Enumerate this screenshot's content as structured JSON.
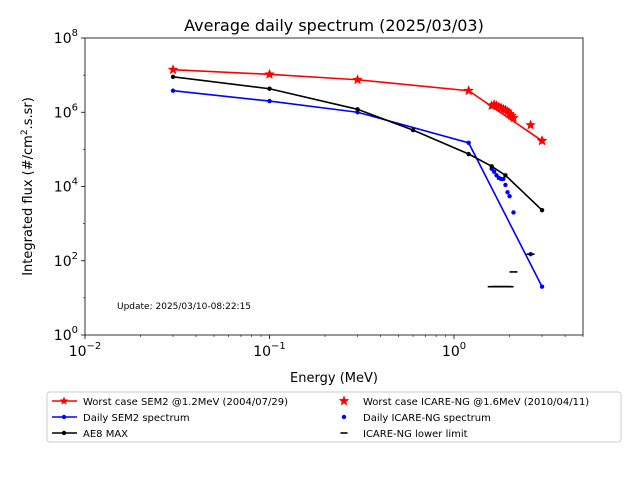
{
  "chart_data": {
    "type": "line",
    "title": "Average daily spectrum (2025/03/03)",
    "xlabel": "Energy (MeV)",
    "ylabel": "Integrated flux (#/cm².s.sr)",
    "xscale": "log",
    "yscale": "log",
    "xlim": [
      0.01,
      5
    ],
    "ylim": [
      1,
      100000000
    ],
    "grid": false,
    "legend_position": "below plot",
    "annotation": "Update: 2025/03/10-08:22:15",
    "x_ticks": [
      {
        "v": 0.01,
        "base": "10",
        "exp": "−2"
      },
      {
        "v": 0.1,
        "base": "10",
        "exp": "−1"
      },
      {
        "v": 1,
        "base": "10",
        "exp": "0"
      }
    ],
    "y_ticks": [
      {
        "v": 1,
        "base": "10",
        "exp": "0"
      },
      {
        "v": 100,
        "base": "10",
        "exp": "2"
      },
      {
        "v": 10000,
        "base": "10",
        "exp": "4"
      },
      {
        "v": 1000000,
        "base": "10",
        "exp": "6"
      },
      {
        "v": 100000000,
        "base": "10",
        "exp": "8"
      }
    ],
    "series": [
      {
        "name": "Worst case SEM2 @1.2MeV (2004/07/29)",
        "color": "#ff0000",
        "style": "line",
        "marker": "star",
        "x": [
          0.03,
          0.1,
          0.3,
          1.2,
          3.0
        ],
        "y": [
          14000000,
          10500000,
          7500000,
          3800000,
          170000
        ]
      },
      {
        "name": "Worst case ICARE-NG @1.6MeV (2010/04/11)",
        "color": "#ff0000",
        "style": "scatter",
        "marker": "star",
        "x": [
          1.6,
          1.65,
          1.7,
          1.75,
          1.8,
          1.85,
          1.9,
          1.95,
          2.0,
          2.05,
          2.1,
          2.6,
          3.0
        ],
        "y": [
          1500000,
          1600000,
          1500000,
          1400000,
          1300000,
          1200000,
          1150000,
          1050000,
          900000,
          800000,
          700000,
          450000,
          170000
        ]
      },
      {
        "name": "Daily SEM2 spectrum",
        "color": "#0000ff",
        "style": "line",
        "marker": "dot",
        "x": [
          0.03,
          0.1,
          0.3,
          1.2,
          3.0
        ],
        "y": [
          3800000,
          2000000,
          1000000,
          150000,
          20
        ]
      },
      {
        "name": "Daily ICARE-NG spectrum",
        "color": "#0000ff",
        "style": "scatter",
        "marker": "dot",
        "x": [
          1.6,
          1.65,
          1.7,
          1.75,
          1.8,
          1.85,
          1.9,
          1.95,
          2.0,
          2.1,
          2.6
        ],
        "y": [
          30000,
          25000,
          20000,
          17000,
          16000,
          16000,
          11000,
          7000,
          5500,
          2000,
          150
        ]
      },
      {
        "name": "AE8 MAX",
        "color": "#000000",
        "style": "line",
        "marker": "dot",
        "x": [
          0.03,
          0.1,
          0.3,
          0.6,
          1.2,
          1.6,
          1.9,
          3.0
        ],
        "y": [
          9000000,
          4300000,
          1200000,
          330000,
          75000,
          35000,
          20000,
          2300
        ]
      },
      {
        "name": "ICARE-NG lower limit",
        "color": "#000000",
        "style": "scatter",
        "marker": "hline",
        "x": [
          1.6,
          1.65,
          1.7,
          1.75,
          1.8,
          1.85,
          1.9,
          1.95,
          2.0,
          2.1,
          2.6
        ],
        "y": [
          20,
          20,
          20,
          20,
          20,
          20,
          20,
          20,
          20,
          50,
          150
        ]
      }
    ],
    "legend_order": [
      0,
      2,
      4,
      1,
      3,
      5
    ]
  }
}
